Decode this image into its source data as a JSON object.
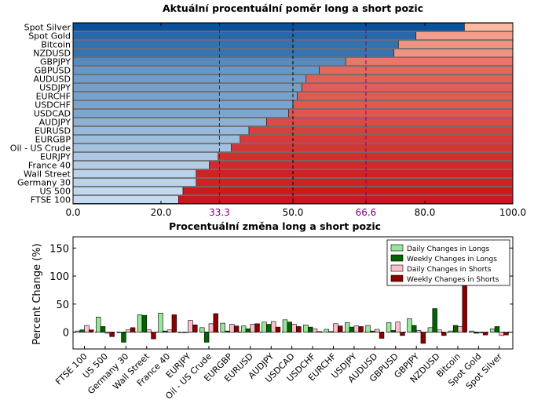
{
  "chart_data": [
    {
      "type": "bar",
      "orientation": "horizontal",
      "stacked": true,
      "title": "Aktuální procentuální poměr long a short pozic",
      "categories": [
        "Spot Silver",
        "Spot Gold",
        "Bitcoin",
        "NZDUSD",
        "GBPJPY",
        "GBPUSD",
        "AUDUSD",
        "USDJPY",
        "EURCHF",
        "USDCHF",
        "USDCAD",
        "AUDJPY",
        "EURUSD",
        "EURGBP",
        "Oil - US Crude",
        "EURJPY",
        "France 40",
        "Wall Street",
        "Germany 30",
        "US 500",
        "FTSE 100"
      ],
      "series": [
        {
          "role": "long",
          "values": [
            89,
            78,
            74,
            73,
            62,
            56,
            53,
            52,
            51,
            50,
            49,
            44,
            40,
            38,
            36,
            33,
            31,
            28,
            28,
            25,
            24
          ]
        },
        {
          "role": "short",
          "values": [
            11,
            22,
            26,
            27,
            38,
            44,
            47,
            48,
            49,
            50,
            51,
            56,
            60,
            62,
            64,
            67,
            69,
            72,
            72,
            75,
            76
          ]
        }
      ],
      "xlim": [
        0,
        100
      ],
      "xticks": [
        "0.0",
        "20.0",
        "33.3",
        "50.0",
        "66.6",
        "80.0",
        "100.0"
      ],
      "highlighted_ticks": [
        "33.3",
        "66.6"
      ],
      "reference_lines": [
        33.3,
        50,
        66.6
      ],
      "colors": {
        "long_dark": "#08519c",
        "long_light": "#c6dbef",
        "short_light": "#fcbba1",
        "short_dark": "#cb181d",
        "highlight_tick": "#800080"
      }
    },
    {
      "type": "bar",
      "title": "Procentuální změna long a short pozic",
      "ylabel": "Percent Change (%)",
      "ylim": [
        -30,
        170
      ],
      "yticks": [
        "0",
        "50",
        "100",
        "150"
      ],
      "categories": [
        "FTSE 100",
        "US 500",
        "Germany 30",
        "Wall Street",
        "France 40",
        "EURJPY",
        "Oil - US Crude",
        "EURGBP",
        "EURUSD",
        "AUDJPY",
        "USDCAD",
        "USDCHF",
        "EURCHF",
        "USDJPY",
        "AUDUSD",
        "GBPUSD",
        "GBPJPY",
        "NZDUSD",
        "Bitcoin",
        "Spot Gold",
        "Spot Silver"
      ],
      "legend": "top-right",
      "series": [
        {
          "name": "Daily Changes in Longs",
          "color": "#98e698",
          "values": [
            2,
            27,
            0,
            31,
            34,
            0,
            8,
            16,
            11,
            18,
            22,
            13,
            5,
            17,
            12,
            17,
            24,
            8,
            2,
            2,
            6
          ]
        },
        {
          "name": "Weekly Changes in Longs",
          "color": "#006400",
          "values": [
            4,
            10,
            -18,
            30,
            2,
            0,
            -18,
            2,
            6,
            14,
            18,
            9,
            1,
            9,
            2,
            3,
            12,
            42,
            12,
            -2,
            10
          ]
        },
        {
          "name": "Daily Changes in Shorts",
          "color": "#ffc0cb",
          "values": [
            12,
            -2,
            4,
            4,
            4,
            21,
            15,
            14,
            14,
            19,
            14,
            6,
            15,
            11,
            5,
            18,
            3,
            4,
            10,
            -1,
            -6
          ]
        },
        {
          "name": "Weekly Changes in Shorts",
          "color": "#8b0000",
          "values": [
            4,
            -8,
            8,
            -12,
            31,
            13,
            33,
            11,
            15,
            9,
            10,
            1,
            11,
            10,
            -11,
            -6,
            -20,
            -6,
            88,
            -5,
            -5
          ]
        }
      ]
    }
  ]
}
